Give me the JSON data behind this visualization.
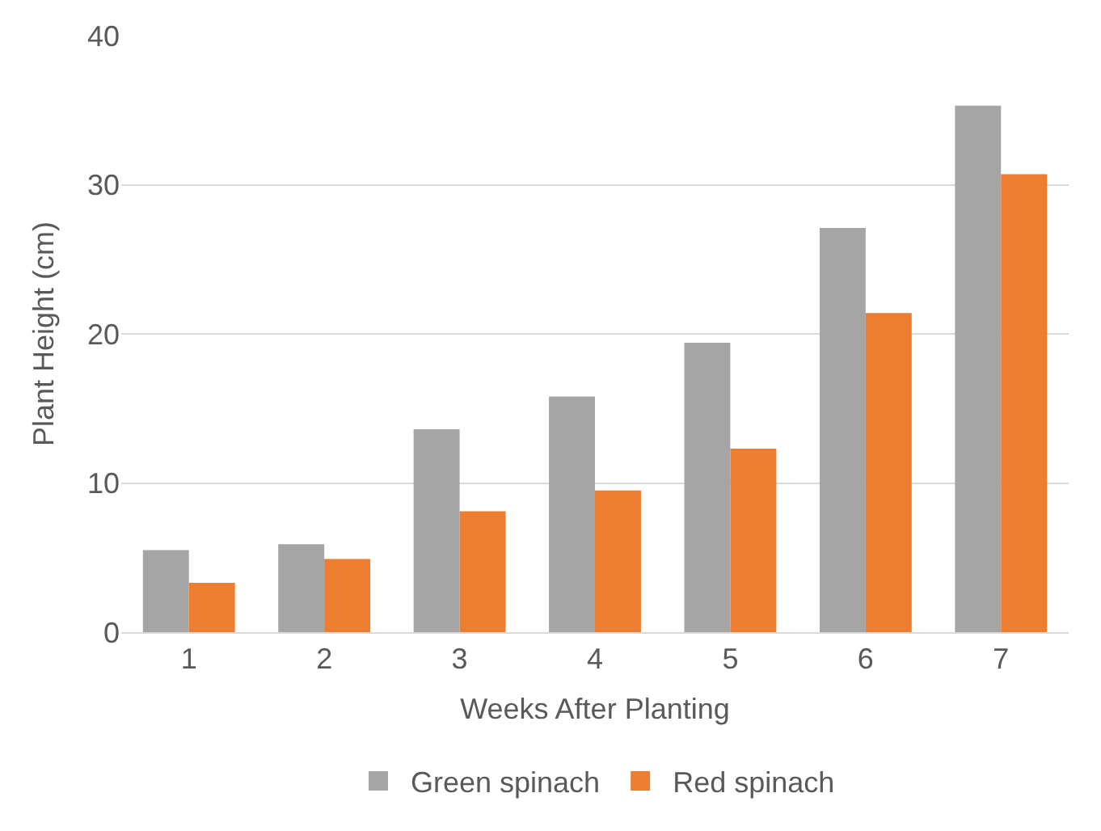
{
  "chart_data": {
    "type": "bar",
    "xlabel": "Weeks After Planting",
    "ylabel": "Plant Height (cm)",
    "categories": [
      "1",
      "2",
      "3",
      "4",
      "5",
      "6",
      "7"
    ],
    "series": [
      {
        "name": "Green spinach",
        "color": "#a5a5a5",
        "values": [
          5.5,
          5.9,
          13.6,
          15.8,
          19.4,
          27.1,
          35.3
        ]
      },
      {
        "name": "Red spinach",
        "color": "#ed7d31",
        "values": [
          3.3,
          4.9,
          8.1,
          9.5,
          12.3,
          21.4,
          30.7
        ]
      }
    ],
    "ylim": [
      0,
      40
    ],
    "yticks": [
      0,
      10,
      20,
      30,
      40
    ],
    "grid": "y",
    "legend": "bottom"
  }
}
